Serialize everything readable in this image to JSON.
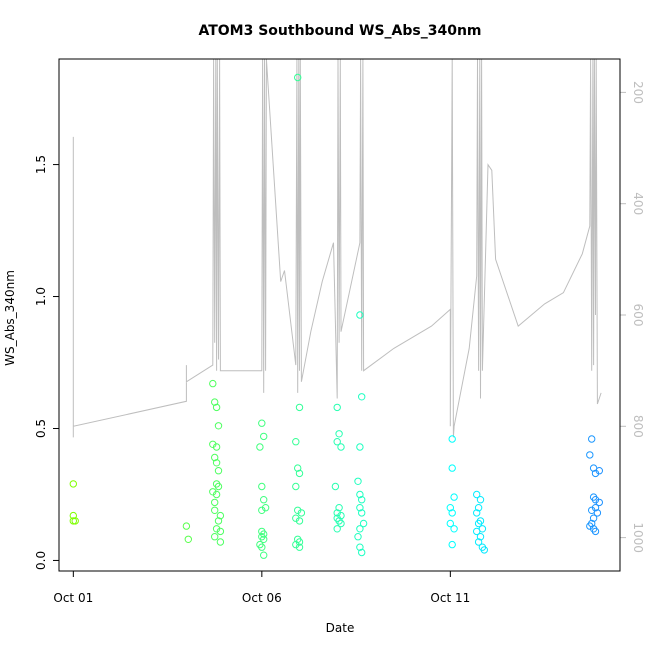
{
  "chart_data": {
    "type": "scatter",
    "title": "ATOM3 Southbound WS_Abs_340nm",
    "xlabel": "Date",
    "ylabel": "WS_Abs_340nm",
    "x_unit": "day of October",
    "xlim": [
      0.62,
      15.5
    ],
    "ylim": [
      -0.04,
      1.9
    ],
    "x_ticks": [
      {
        "value": 1,
        "label": "Oct 01"
      },
      {
        "value": 6,
        "label": "Oct 06"
      },
      {
        "value": 11,
        "label": "Oct 11"
      }
    ],
    "y_ticks": [
      0.0,
      0.5,
      1.0,
      1.5
    ],
    "y2_ticks": [
      200,
      400,
      600,
      800,
      1000
    ],
    "y2_range_top_to_bottom": [
      140,
      1060
    ],
    "y2_reversed": true,
    "grid": false,
    "legend": "none",
    "marker": "open-circle",
    "color_scale": {
      "start": "#7fff00",
      "mid": "#00ffff",
      "end": "#1e90ff"
    },
    "series": [
      {
        "points": [
          [
            1.0,
            0.29
          ],
          [
            1.0,
            0.17
          ],
          [
            1.0,
            0.15
          ],
          [
            1.05,
            0.15
          ],
          [
            4.0,
            0.13
          ],
          [
            4.05,
            0.08
          ],
          [
            4.7,
            0.67
          ],
          [
            4.75,
            0.6
          ],
          [
            4.8,
            0.58
          ],
          [
            4.7,
            0.44
          ],
          [
            4.8,
            0.43
          ],
          [
            4.85,
            0.51
          ],
          [
            4.75,
            0.39
          ],
          [
            4.8,
            0.37
          ],
          [
            4.85,
            0.34
          ],
          [
            4.8,
            0.29
          ],
          [
            4.85,
            0.28
          ],
          [
            4.7,
            0.26
          ],
          [
            4.8,
            0.25
          ],
          [
            4.75,
            0.22
          ],
          [
            4.9,
            0.17
          ],
          [
            4.75,
            0.19
          ],
          [
            4.85,
            0.15
          ],
          [
            4.8,
            0.12
          ],
          [
            4.9,
            0.11
          ],
          [
            4.75,
            0.09
          ],
          [
            4.9,
            0.07
          ],
          [
            6.0,
            0.52
          ],
          [
            6.05,
            0.47
          ],
          [
            5.95,
            0.43
          ],
          [
            6.0,
            0.28
          ],
          [
            6.05,
            0.23
          ],
          [
            6.1,
            0.2
          ],
          [
            6.0,
            0.19
          ],
          [
            6.0,
            0.11
          ],
          [
            6.05,
            0.1
          ],
          [
            6.0,
            0.09
          ],
          [
            6.05,
            0.08
          ],
          [
            5.95,
            0.06
          ],
          [
            6.0,
            0.05
          ],
          [
            6.05,
            0.02
          ],
          [
            6.95,
            1.83
          ],
          [
            7.0,
            0.58
          ],
          [
            6.9,
            0.45
          ],
          [
            6.95,
            0.35
          ],
          [
            7.0,
            0.33
          ],
          [
            6.9,
            0.28
          ],
          [
            6.95,
            0.19
          ],
          [
            7.05,
            0.18
          ],
          [
            6.9,
            0.16
          ],
          [
            7.0,
            0.15
          ],
          [
            6.95,
            0.08
          ],
          [
            7.0,
            0.07
          ],
          [
            6.9,
            0.06
          ],
          [
            7.0,
            0.05
          ],
          [
            8.0,
            0.58
          ],
          [
            8.05,
            0.48
          ],
          [
            8.0,
            0.45
          ],
          [
            8.1,
            0.43
          ],
          [
            7.95,
            0.28
          ],
          [
            8.05,
            0.2
          ],
          [
            8.0,
            0.18
          ],
          [
            8.1,
            0.17
          ],
          [
            8.0,
            0.16
          ],
          [
            8.05,
            0.15
          ],
          [
            8.1,
            0.14
          ],
          [
            8.0,
            0.12
          ],
          [
            8.6,
            0.93
          ],
          [
            8.65,
            0.62
          ],
          [
            8.6,
            0.43
          ],
          [
            8.55,
            0.3
          ],
          [
            8.6,
            0.25
          ],
          [
            8.65,
            0.23
          ],
          [
            8.6,
            0.2
          ],
          [
            8.65,
            0.18
          ],
          [
            8.7,
            0.14
          ],
          [
            8.6,
            0.12
          ],
          [
            8.55,
            0.09
          ],
          [
            8.6,
            0.05
          ],
          [
            8.65,
            0.03
          ],
          [
            11.05,
            0.46
          ],
          [
            11.05,
            0.35
          ],
          [
            11.1,
            0.24
          ],
          [
            11.0,
            0.2
          ],
          [
            11.05,
            0.18
          ],
          [
            11.0,
            0.14
          ],
          [
            11.1,
            0.12
          ],
          [
            11.05,
            0.06
          ],
          [
            11.7,
            0.25
          ],
          [
            11.8,
            0.23
          ],
          [
            11.75,
            0.2
          ],
          [
            11.7,
            0.18
          ],
          [
            11.8,
            0.15
          ],
          [
            11.75,
            0.14
          ],
          [
            11.85,
            0.12
          ],
          [
            11.7,
            0.11
          ],
          [
            11.8,
            0.09
          ],
          [
            11.75,
            0.07
          ],
          [
            11.85,
            0.05
          ],
          [
            11.9,
            0.04
          ],
          [
            14.75,
            0.46
          ],
          [
            14.7,
            0.4
          ],
          [
            14.8,
            0.35
          ],
          [
            14.95,
            0.34
          ],
          [
            14.85,
            0.33
          ],
          [
            14.8,
            0.24
          ],
          [
            14.85,
            0.23
          ],
          [
            14.95,
            0.22
          ],
          [
            14.85,
            0.2
          ],
          [
            14.75,
            0.19
          ],
          [
            14.9,
            0.18
          ],
          [
            14.8,
            0.16
          ],
          [
            14.75,
            0.14
          ],
          [
            14.7,
            0.13
          ],
          [
            14.8,
            0.12
          ],
          [
            14.85,
            0.11
          ]
        ]
      }
    ],
    "secondary_line": {
      "color": "#bebebe",
      "axis": "y2",
      "points": [
        [
          1.0,
          350
        ],
        [
          1.0,
          280
        ],
        [
          1.0,
          820
        ],
        [
          1.0,
          800
        ],
        [
          4.0,
          755
        ],
        [
          4.0,
          690
        ],
        [
          4.0,
          720
        ],
        [
          4.7,
          690
        ],
        [
          4.72,
          140
        ],
        [
          4.75,
          650
        ],
        [
          4.78,
          140
        ],
        [
          4.8,
          700
        ],
        [
          4.82,
          140
        ],
        [
          4.85,
          680
        ],
        [
          4.88,
          140
        ],
        [
          4.9,
          700
        ],
        [
          6.0,
          700
        ],
        [
          6.02,
          140
        ],
        [
          6.05,
          740
        ],
        [
          6.07,
          140
        ],
        [
          6.1,
          700
        ],
        [
          6.12,
          140
        ],
        [
          6.5,
          540
        ],
        [
          6.6,
          520
        ],
        [
          6.9,
          690
        ],
        [
          6.93,
          140
        ],
        [
          6.95,
          740
        ],
        [
          6.98,
          140
        ],
        [
          7.0,
          700
        ],
        [
          7.02,
          140
        ],
        [
          7.05,
          720
        ],
        [
          7.3,
          630
        ],
        [
          7.6,
          540
        ],
        [
          7.9,
          470
        ],
        [
          8.0,
          750
        ],
        [
          8.02,
          140
        ],
        [
          8.05,
          650
        ],
        [
          8.08,
          140
        ],
        [
          8.1,
          630
        ],
        [
          8.6,
          470
        ],
        [
          8.62,
          140
        ],
        [
          8.65,
          700
        ],
        [
          8.68,
          140
        ],
        [
          8.7,
          700
        ],
        [
          9.5,
          660
        ],
        [
          10.5,
          620
        ],
        [
          11.0,
          590
        ],
        [
          11.0,
          800
        ],
        [
          11.05,
          140
        ],
        [
          11.08,
          820
        ],
        [
          11.1,
          800
        ],
        [
          11.5,
          660
        ],
        [
          11.7,
          530
        ],
        [
          11.72,
          140
        ],
        [
          11.75,
          700
        ],
        [
          11.78,
          140
        ],
        [
          11.8,
          750
        ],
        [
          11.83,
          140
        ],
        [
          11.85,
          700
        ],
        [
          12.0,
          330
        ],
        [
          12.1,
          340
        ],
        [
          12.2,
          500
        ],
        [
          12.8,
          620
        ],
        [
          13.5,
          580
        ],
        [
          14.0,
          560
        ],
        [
          14.5,
          490
        ],
        [
          14.7,
          440
        ],
        [
          14.72,
          140
        ],
        [
          14.75,
          700
        ],
        [
          14.78,
          140
        ],
        [
          14.8,
          690
        ],
        [
          14.82,
          140
        ],
        [
          14.85,
          600
        ],
        [
          14.87,
          140
        ],
        [
          14.9,
          760
        ],
        [
          15.0,
          740
        ]
      ]
    }
  }
}
